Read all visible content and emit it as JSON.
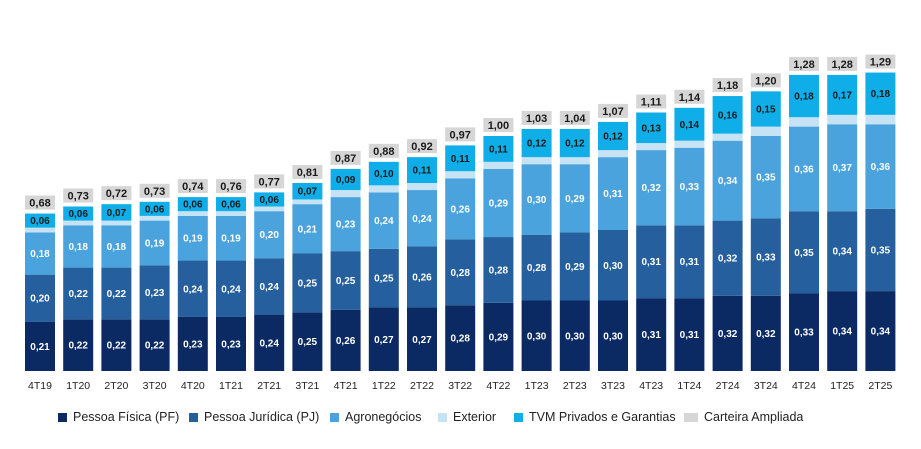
{
  "chart_data": {
    "type": "bar",
    "stacked": true,
    "title": "",
    "xlabel": "",
    "ylabel": "",
    "categories": [
      "4T19",
      "1T20",
      "2T20",
      "3T20",
      "4T20",
      "1T21",
      "2T21",
      "3T21",
      "4T21",
      "1T22",
      "2T22",
      "3T22",
      "4T22",
      "1T23",
      "2T23",
      "3T23",
      "4T23",
      "1T24",
      "2T24",
      "3T24",
      "4T24",
      "1T25",
      "2T25"
    ],
    "series": [
      {
        "name": "Pessoa Física (PF)",
        "color": "#0b2a63",
        "label_color": "#ffffff",
        "values": [
          0.21,
          0.22,
          0.22,
          0.22,
          0.23,
          0.23,
          0.24,
          0.25,
          0.26,
          0.27,
          0.27,
          0.28,
          0.29,
          0.3,
          0.3,
          0.3,
          0.31,
          0.31,
          0.32,
          0.32,
          0.33,
          0.34,
          0.34
        ],
        "labels": [
          "0,21",
          "0,22",
          "0,22",
          "0,22",
          "0,23",
          "0,23",
          "0,24",
          "0,25",
          "0,26",
          "0,27",
          "0,27",
          "0,28",
          "0,29",
          "0,30",
          "0,30",
          "0,30",
          "0,31",
          "0,31",
          "0,32",
          "0,32",
          "0,33",
          "0,34",
          "0,34"
        ]
      },
      {
        "name": "Pessoa Jurídica (PJ)",
        "color": "#255f9d",
        "label_color": "#ffffff",
        "values": [
          0.2,
          0.22,
          0.22,
          0.23,
          0.24,
          0.24,
          0.24,
          0.25,
          0.25,
          0.25,
          0.26,
          0.28,
          0.28,
          0.28,
          0.29,
          0.3,
          0.31,
          0.31,
          0.32,
          0.33,
          0.35,
          0.34,
          0.35
        ],
        "labels": [
          "0,20",
          "0,22",
          "0,22",
          "0,23",
          "0,24",
          "0,24",
          "0,24",
          "0,25",
          "0,25",
          "0,25",
          "0,26",
          "0,28",
          "0,28",
          "0,28",
          "0,29",
          "0,30",
          "0,31",
          "0,31",
          "0,32",
          "0,33",
          "0,35",
          "0,34",
          "0,35"
        ]
      },
      {
        "name": "Agronegócios",
        "color": "#4aa3dc",
        "label_color": "#ffffff",
        "values": [
          0.18,
          0.18,
          0.18,
          0.19,
          0.19,
          0.19,
          0.2,
          0.21,
          0.23,
          0.24,
          0.24,
          0.26,
          0.29,
          0.3,
          0.29,
          0.31,
          0.32,
          0.33,
          0.34,
          0.35,
          0.36,
          0.37,
          0.36
        ],
        "labels": [
          "0,18",
          "0,18",
          "0,18",
          "0,19",
          "0,19",
          "0,19",
          "0,20",
          "0,21",
          "0,23",
          "0,24",
          "0,24",
          "0,26",
          "0,29",
          "0,30",
          "0,29",
          "0,31",
          "0,32",
          "0,33",
          "0,34",
          "0,35",
          "0,36",
          "0,37",
          "0,36"
        ]
      },
      {
        "name": "Exterior",
        "color": "#c5e3f5",
        "label_color": "#222222",
        "values": [
          0.02,
          0.02,
          0.02,
          0.02,
          0.02,
          0.02,
          0.02,
          0.02,
          0.03,
          0.03,
          0.03,
          0.03,
          0.03,
          0.03,
          0.03,
          0.03,
          0.03,
          0.03,
          0.03,
          0.04,
          0.04,
          0.04,
          0.04
        ],
        "labels": []
      },
      {
        "name": "TVM Privados e Garantias",
        "color": "#10aee8",
        "label_color": "#1a1a1a",
        "values": [
          0.06,
          0.06,
          0.07,
          0.06,
          0.06,
          0.06,
          0.06,
          0.07,
          0.09,
          0.1,
          0.11,
          0.11,
          0.11,
          0.12,
          0.12,
          0.12,
          0.13,
          0.14,
          0.16,
          0.15,
          0.18,
          0.17,
          0.18
        ],
        "labels": [
          "0,06",
          "0,06",
          "0,07",
          "0,06",
          "0,06",
          "0,06",
          "0,06",
          "0,07",
          "0,09",
          "0,10",
          "0,11",
          "0,11",
          "0,11",
          "0,12",
          "0,12",
          "0,12",
          "0,13",
          "0,14",
          "0,16",
          "0,15",
          "0,18",
          "0,17",
          "0,18"
        ]
      },
      {
        "name": "Carteira Ampliada",
        "color": "#d6d6d6",
        "label_color": "#1a1a1a",
        "values": [
          0.68,
          0.73,
          0.72,
          0.73,
          0.74,
          0.76,
          0.77,
          0.81,
          0.87,
          0.88,
          0.92,
          0.97,
          1.0,
          1.03,
          1.04,
          1.07,
          1.11,
          1.14,
          1.18,
          1.2,
          1.28,
          1.28,
          1.29
        ],
        "labels": [
          "0,68",
          "0,73",
          "0,72",
          "0,73",
          "0,74",
          "0,76",
          "0,77",
          "0,81",
          "0,87",
          "0,88",
          "0,92",
          "0,97",
          "1,00",
          "1,03",
          "1,04",
          "1,07",
          "1,11",
          "1,14",
          "1,18",
          "1,20",
          "1,28",
          "1,28",
          "1,29"
        ]
      }
    ],
    "grid": false,
    "legend_position": "bottom"
  }
}
